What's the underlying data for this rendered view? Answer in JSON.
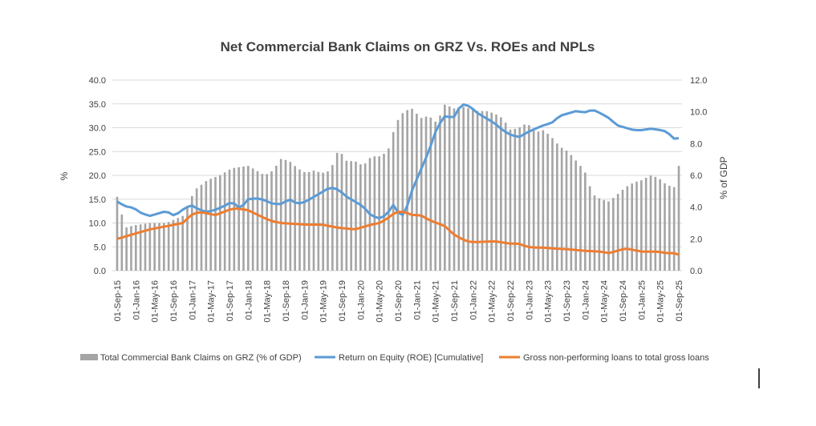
{
  "chart_data": {
    "type": "bar",
    "title": "Net Commercial Bank Claims on GRZ Vs. ROEs and NPLs",
    "ylabel_left": "%",
    "ylabel_right": "% of GDP",
    "ylim_left": [
      0,
      40
    ],
    "ylim_right": [
      0,
      12
    ],
    "yticks_left": [
      "0.0",
      "5.0",
      "10.0",
      "15.0",
      "20.0",
      "25.0",
      "30.0",
      "35.0",
      "40.0"
    ],
    "yticks_right": [
      "0.0",
      "2.0",
      "4.0",
      "6.0",
      "8.0",
      "10.0",
      "12.0"
    ],
    "x_tick_labels": [
      "01-Sep-15",
      "01-Jan-16",
      "01-May-16",
      "01-Sep-16",
      "01-Jan-17",
      "01-May-17",
      "01-Sep-17",
      "01-Jan-18",
      "01-May-18",
      "01-Sep-18",
      "01-Jan-19",
      "01-May-19",
      "01-Sep-19",
      "01-Jan-20",
      "01-May-20",
      "01-Sep-20",
      "01-Jan-21",
      "01-May-21",
      "01-Sep-21",
      "01-Jan-22",
      "01-May-22",
      "01-Sep-22",
      "01-Jan-23",
      "01-May-23",
      "01-Sep-23",
      "01-Jan-24",
      "01-May-24",
      "01-Sep-24",
      "01-Jan-25",
      "01-May-25",
      "01-Sep-25"
    ],
    "months_count": 121,
    "series": [
      {
        "name": "Total Commercial Bank Claims on GRZ (% of GDP)",
        "axis": "left",
        "kind": "bar",
        "color": "#a5a5a5",
        "anchors": [
          [
            0,
            15.5
          ],
          [
            2,
            9
          ],
          [
            4,
            9.5
          ],
          [
            8,
            10
          ],
          [
            12,
            10
          ],
          [
            16,
            11.5
          ],
          [
            19,
            17
          ],
          [
            22,
            19
          ],
          [
            25,
            20
          ],
          [
            28,
            21.5
          ],
          [
            32,
            22
          ],
          [
            34,
            21
          ],
          [
            36,
            20
          ],
          [
            38,
            21
          ],
          [
            40,
            23.5
          ],
          [
            42,
            23
          ],
          [
            44,
            21.5
          ],
          [
            46,
            20.5
          ],
          [
            48,
            21
          ],
          [
            50,
            20.5
          ],
          [
            52,
            21
          ],
          [
            54,
            25.5
          ],
          [
            56,
            23
          ],
          [
            58,
            23
          ],
          [
            60,
            22
          ],
          [
            62,
            24
          ],
          [
            64,
            24
          ],
          [
            66,
            25
          ],
          [
            68,
            31
          ],
          [
            70,
            33.5
          ],
          [
            72,
            34
          ],
          [
            74,
            32
          ],
          [
            76,
            32.5
          ],
          [
            78,
            31
          ],
          [
            80,
            35
          ],
          [
            82,
            34
          ],
          [
            84,
            34.5
          ],
          [
            86,
            34
          ],
          [
            88,
            33.5
          ],
          [
            90,
            33.5
          ],
          [
            92,
            33
          ],
          [
            94,
            32
          ],
          [
            96,
            29.5
          ],
          [
            98,
            30
          ],
          [
            100,
            31
          ],
          [
            102,
            29
          ],
          [
            104,
            29.5
          ],
          [
            106,
            28
          ],
          [
            108,
            26
          ],
          [
            110,
            25
          ],
          [
            112,
            23
          ],
          [
            114,
            21
          ],
          [
            116,
            16
          ],
          [
            118,
            15
          ],
          [
            120,
            14.5
          ],
          [
            122,
            16
          ],
          [
            124,
            17.5
          ],
          [
            126,
            18.5
          ],
          [
            128,
            19
          ],
          [
            130,
            20
          ],
          [
            132,
            19.5
          ],
          [
            134,
            18
          ],
          [
            136,
            17.5
          ],
          [
            137,
            22
          ]
        ]
      },
      {
        "name": "Return on Equity (ROE) [Cumulative]",
        "axis": "left",
        "kind": "line",
        "color": "#5b9bd5",
        "anchors": [
          [
            0,
            14.5
          ],
          [
            2,
            13.5
          ],
          [
            4,
            13.2
          ],
          [
            6,
            12
          ],
          [
            8,
            11.5
          ],
          [
            10,
            12
          ],
          [
            12,
            12.5
          ],
          [
            14,
            11.5
          ],
          [
            16,
            12.8
          ],
          [
            18,
            13.8
          ],
          [
            20,
            12.8
          ],
          [
            22,
            12.3
          ],
          [
            24,
            12.8
          ],
          [
            26,
            13.5
          ],
          [
            28,
            14.5
          ],
          [
            30,
            13
          ],
          [
            32,
            15
          ],
          [
            34,
            15.2
          ],
          [
            36,
            14.8
          ],
          [
            38,
            14
          ],
          [
            40,
            14
          ],
          [
            42,
            15
          ],
          [
            44,
            14
          ],
          [
            46,
            14.5
          ],
          [
            48,
            15.5
          ],
          [
            50,
            16.5
          ],
          [
            52,
            17.5
          ],
          [
            54,
            17
          ],
          [
            56,
            15.5
          ],
          [
            58,
            14.5
          ],
          [
            60,
            13.5
          ],
          [
            62,
            11.5
          ],
          [
            64,
            11
          ],
          [
            66,
            11.8
          ],
          [
            67,
            14.5
          ],
          [
            68,
            12.5
          ],
          [
            70,
            11.5
          ],
          [
            72,
            17
          ],
          [
            74,
            21
          ],
          [
            76,
            25
          ],
          [
            78,
            30
          ],
          [
            80,
            32.5
          ],
          [
            82,
            32
          ],
          [
            84,
            35
          ],
          [
            86,
            34.5
          ],
          [
            88,
            33
          ],
          [
            90,
            32
          ],
          [
            92,
            31
          ],
          [
            94,
            29.5
          ],
          [
            96,
            28.5
          ],
          [
            98,
            28
          ],
          [
            100,
            29
          ],
          [
            102,
            29.8
          ],
          [
            104,
            30.5
          ],
          [
            106,
            31
          ],
          [
            108,
            32.5
          ],
          [
            110,
            33
          ],
          [
            112,
            33.5
          ],
          [
            114,
            33.2
          ],
          [
            116,
            33.8
          ],
          [
            118,
            33
          ],
          [
            120,
            32
          ],
          [
            122,
            30.5
          ],
          [
            124,
            30
          ],
          [
            126,
            29.5
          ],
          [
            128,
            29.5
          ],
          [
            130,
            29.8
          ],
          [
            132,
            29.6
          ],
          [
            134,
            29.2
          ],
          [
            136,
            27.6
          ],
          [
            137,
            27.8
          ]
        ]
      },
      {
        "name": "Gross non-performing loans to total gross loans",
        "axis": "right",
        "kind": "line",
        "color": "#ed7d31",
        "anchors": [
          [
            0,
            2.0
          ],
          [
            4,
            2.3
          ],
          [
            8,
            2.6
          ],
          [
            12,
            2.8
          ],
          [
            16,
            3.0
          ],
          [
            18,
            3.5
          ],
          [
            20,
            3.7
          ],
          [
            24,
            3.5
          ],
          [
            28,
            3.9
          ],
          [
            30,
            3.9
          ],
          [
            32,
            3.8
          ],
          [
            36,
            3.3
          ],
          [
            38,
            3.1
          ],
          [
            40,
            3.0
          ],
          [
            46,
            2.9
          ],
          [
            50,
            2.9
          ],
          [
            54,
            2.7
          ],
          [
            58,
            2.6
          ],
          [
            62,
            2.9
          ],
          [
            64,
            3.0
          ],
          [
            66,
            3.3
          ],
          [
            68,
            3.7
          ],
          [
            70,
            3.7
          ],
          [
            72,
            3.5
          ],
          [
            74,
            3.5
          ],
          [
            76,
            3.2
          ],
          [
            80,
            2.8
          ],
          [
            82,
            2.3
          ],
          [
            84,
            2.0
          ],
          [
            86,
            1.8
          ],
          [
            88,
            1.8
          ],
          [
            92,
            1.85
          ],
          [
            96,
            1.7
          ],
          [
            98,
            1.7
          ],
          [
            100,
            1.5
          ],
          [
            102,
            1.45
          ],
          [
            104,
            1.45
          ],
          [
            106,
            1.4
          ],
          [
            110,
            1.35
          ],
          [
            114,
            1.25
          ],
          [
            118,
            1.2
          ],
          [
            120,
            1.1
          ],
          [
            122,
            1.25
          ],
          [
            124,
            1.4
          ],
          [
            126,
            1.3
          ],
          [
            128,
            1.2
          ],
          [
            132,
            1.2
          ],
          [
            134,
            1.1
          ],
          [
            136,
            1.1
          ],
          [
            137,
            1.0
          ]
        ]
      }
    ],
    "legend_position": "bottom"
  }
}
